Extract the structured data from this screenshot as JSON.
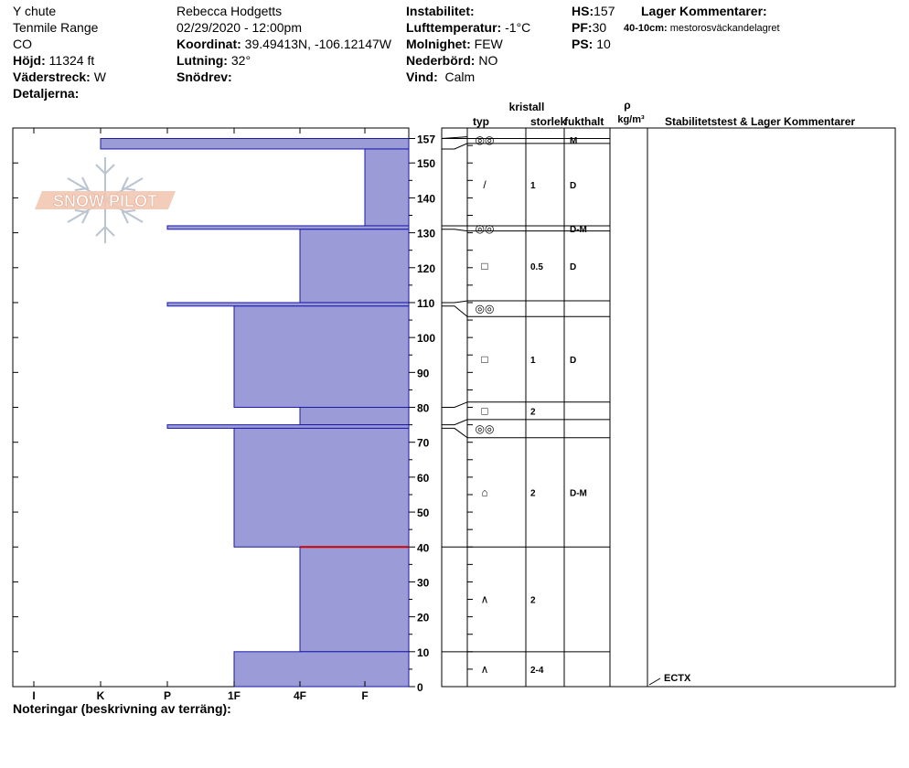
{
  "header": {
    "col1": {
      "location": "Y chute",
      "range": "Tenmile Range",
      "state": "CO",
      "elevation_label": "Höjd:",
      "elevation_value": "11324 ft",
      "aspect_label": "Väderstreck:",
      "aspect_value": "W",
      "details_label": "Detaljerna:"
    },
    "col2": {
      "observer": "Rebecca Hodgetts",
      "datetime": "02/29/2020 - 12:00pm",
      "coord_label": "Koordinat:",
      "coord_value": "39.49413N, -106.12147W",
      "slope_label": "Lutning:",
      "slope_value": "32°",
      "drift_label": "Snödrev:"
    },
    "col3": {
      "instability_label": "Instabilitet:",
      "airtemp_label": "Lufttemperatur:",
      "airtemp_value": "-1°C",
      "sky_label": "Molnighet:",
      "sky_value": "FEW",
      "precip_label": "Nederbörd:",
      "precip_value": "NO",
      "wind_label": "Vind:",
      "wind_value": "Calm"
    },
    "col4": {
      "hs_label": "HS:",
      "hs_value": "157",
      "pf_label": "PF:",
      "pf_value": "30",
      "ps_label": "PS:",
      "ps_value": "10"
    },
    "comments": {
      "title": "Lager Kommentarer:",
      "item_depth": "40-10cm:",
      "item_text": "mestorosväckandelagret"
    }
  },
  "logo": {
    "text": "SNOW PILOT"
  },
  "columns": {
    "kristall": "kristall",
    "typ": "typ",
    "storlek": "storlek",
    "fukthalt": "fukthalt",
    "rho": "ρ",
    "density_unit": "kg/m³",
    "stability": "Stabilitetstest & Lager Kommentarer"
  },
  "footer": {
    "notes_label": "Noteringar (beskrivning av terräng):"
  },
  "colors": {
    "layer_fill": "#9b9bd7",
    "layer_stroke": "#1a1aa8",
    "weak_layer": "#cc0000"
  },
  "chart_data": {
    "type": "bar",
    "xlabel": "",
    "ylabel": "",
    "hardness_ticks": [
      "I",
      "K",
      "P",
      "1F",
      "4F",
      "F"
    ],
    "depth_ticks": [
      157,
      150,
      140,
      130,
      120,
      110,
      100,
      90,
      80,
      70,
      60,
      50,
      40,
      30,
      20,
      10,
      0
    ],
    "ylim": [
      0,
      157
    ],
    "hs": 157,
    "weak_layer_height": 40,
    "layers": [
      {
        "top": 157,
        "bottom": 154,
        "hardness": "K",
        "type": "◎◎",
        "size": "",
        "moisture": "M"
      },
      {
        "top": 154,
        "bottom": 132,
        "hardness": "F",
        "type": "/",
        "size": "1",
        "moisture": "D"
      },
      {
        "top": 132,
        "bottom": 131,
        "hardness": "P+",
        "type": "◎◎",
        "size": "",
        "moisture": "D-M"
      },
      {
        "top": 131,
        "bottom": 110,
        "hardness": "4F",
        "type": "□",
        "size": "0.5",
        "moisture": "D"
      },
      {
        "top": 110,
        "bottom": 109,
        "hardness": "P+",
        "type": "◎◎",
        "size": "",
        "moisture": ""
      },
      {
        "top": 109,
        "bottom": 80,
        "hardness": "1F",
        "type": "□",
        "size": "1",
        "moisture": "D"
      },
      {
        "top": 80,
        "bottom": 75,
        "hardness": "4F",
        "type": "□",
        "size": "2",
        "moisture": ""
      },
      {
        "top": 75,
        "bottom": 74,
        "hardness": "P+",
        "type": "◎◎",
        "size": "",
        "moisture": ""
      },
      {
        "top": 74,
        "bottom": 40,
        "hardness": "1F",
        "type": "⌂",
        "size": "2",
        "moisture": "D-M"
      },
      {
        "top": 40,
        "bottom": 10,
        "hardness": "4F",
        "type": "∧",
        "size": "2",
        "moisture": ""
      },
      {
        "top": 10,
        "bottom": 0,
        "hardness": "1F",
        "type": "∧",
        "size": "2-4",
        "moisture": ""
      }
    ],
    "stability_tests": [
      {
        "label": "ECTX",
        "height": 0
      }
    ]
  }
}
